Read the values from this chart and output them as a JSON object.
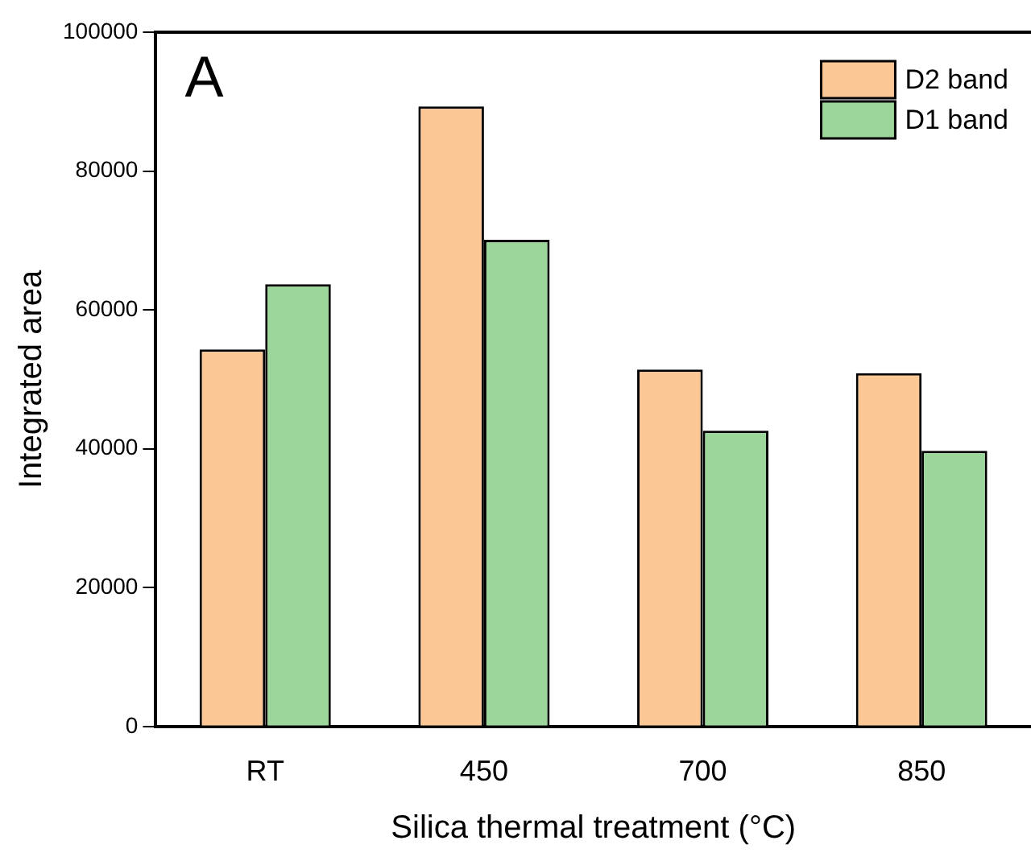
{
  "chart_data": {
    "type": "bar",
    "xlabel": "Silica thermal treatment (°C)",
    "ylabel": "Integrated area",
    "annotations": [
      "A"
    ],
    "categories": [
      "RT",
      "450",
      "700",
      "850"
    ],
    "series": [
      {
        "name": "D2 band",
        "color": "#fac795",
        "values": [
          54300,
          89300,
          51400,
          50900
        ]
      },
      {
        "name": "D1 band",
        "color": "#9dd69a",
        "values": [
          63700,
          70100,
          42600,
          39700
        ]
      }
    ],
    "ylim": [
      0,
      100000
    ],
    "yticks": [
      0,
      20000,
      40000,
      60000,
      80000,
      100000
    ],
    "grid": false,
    "legend": "top right"
  }
}
